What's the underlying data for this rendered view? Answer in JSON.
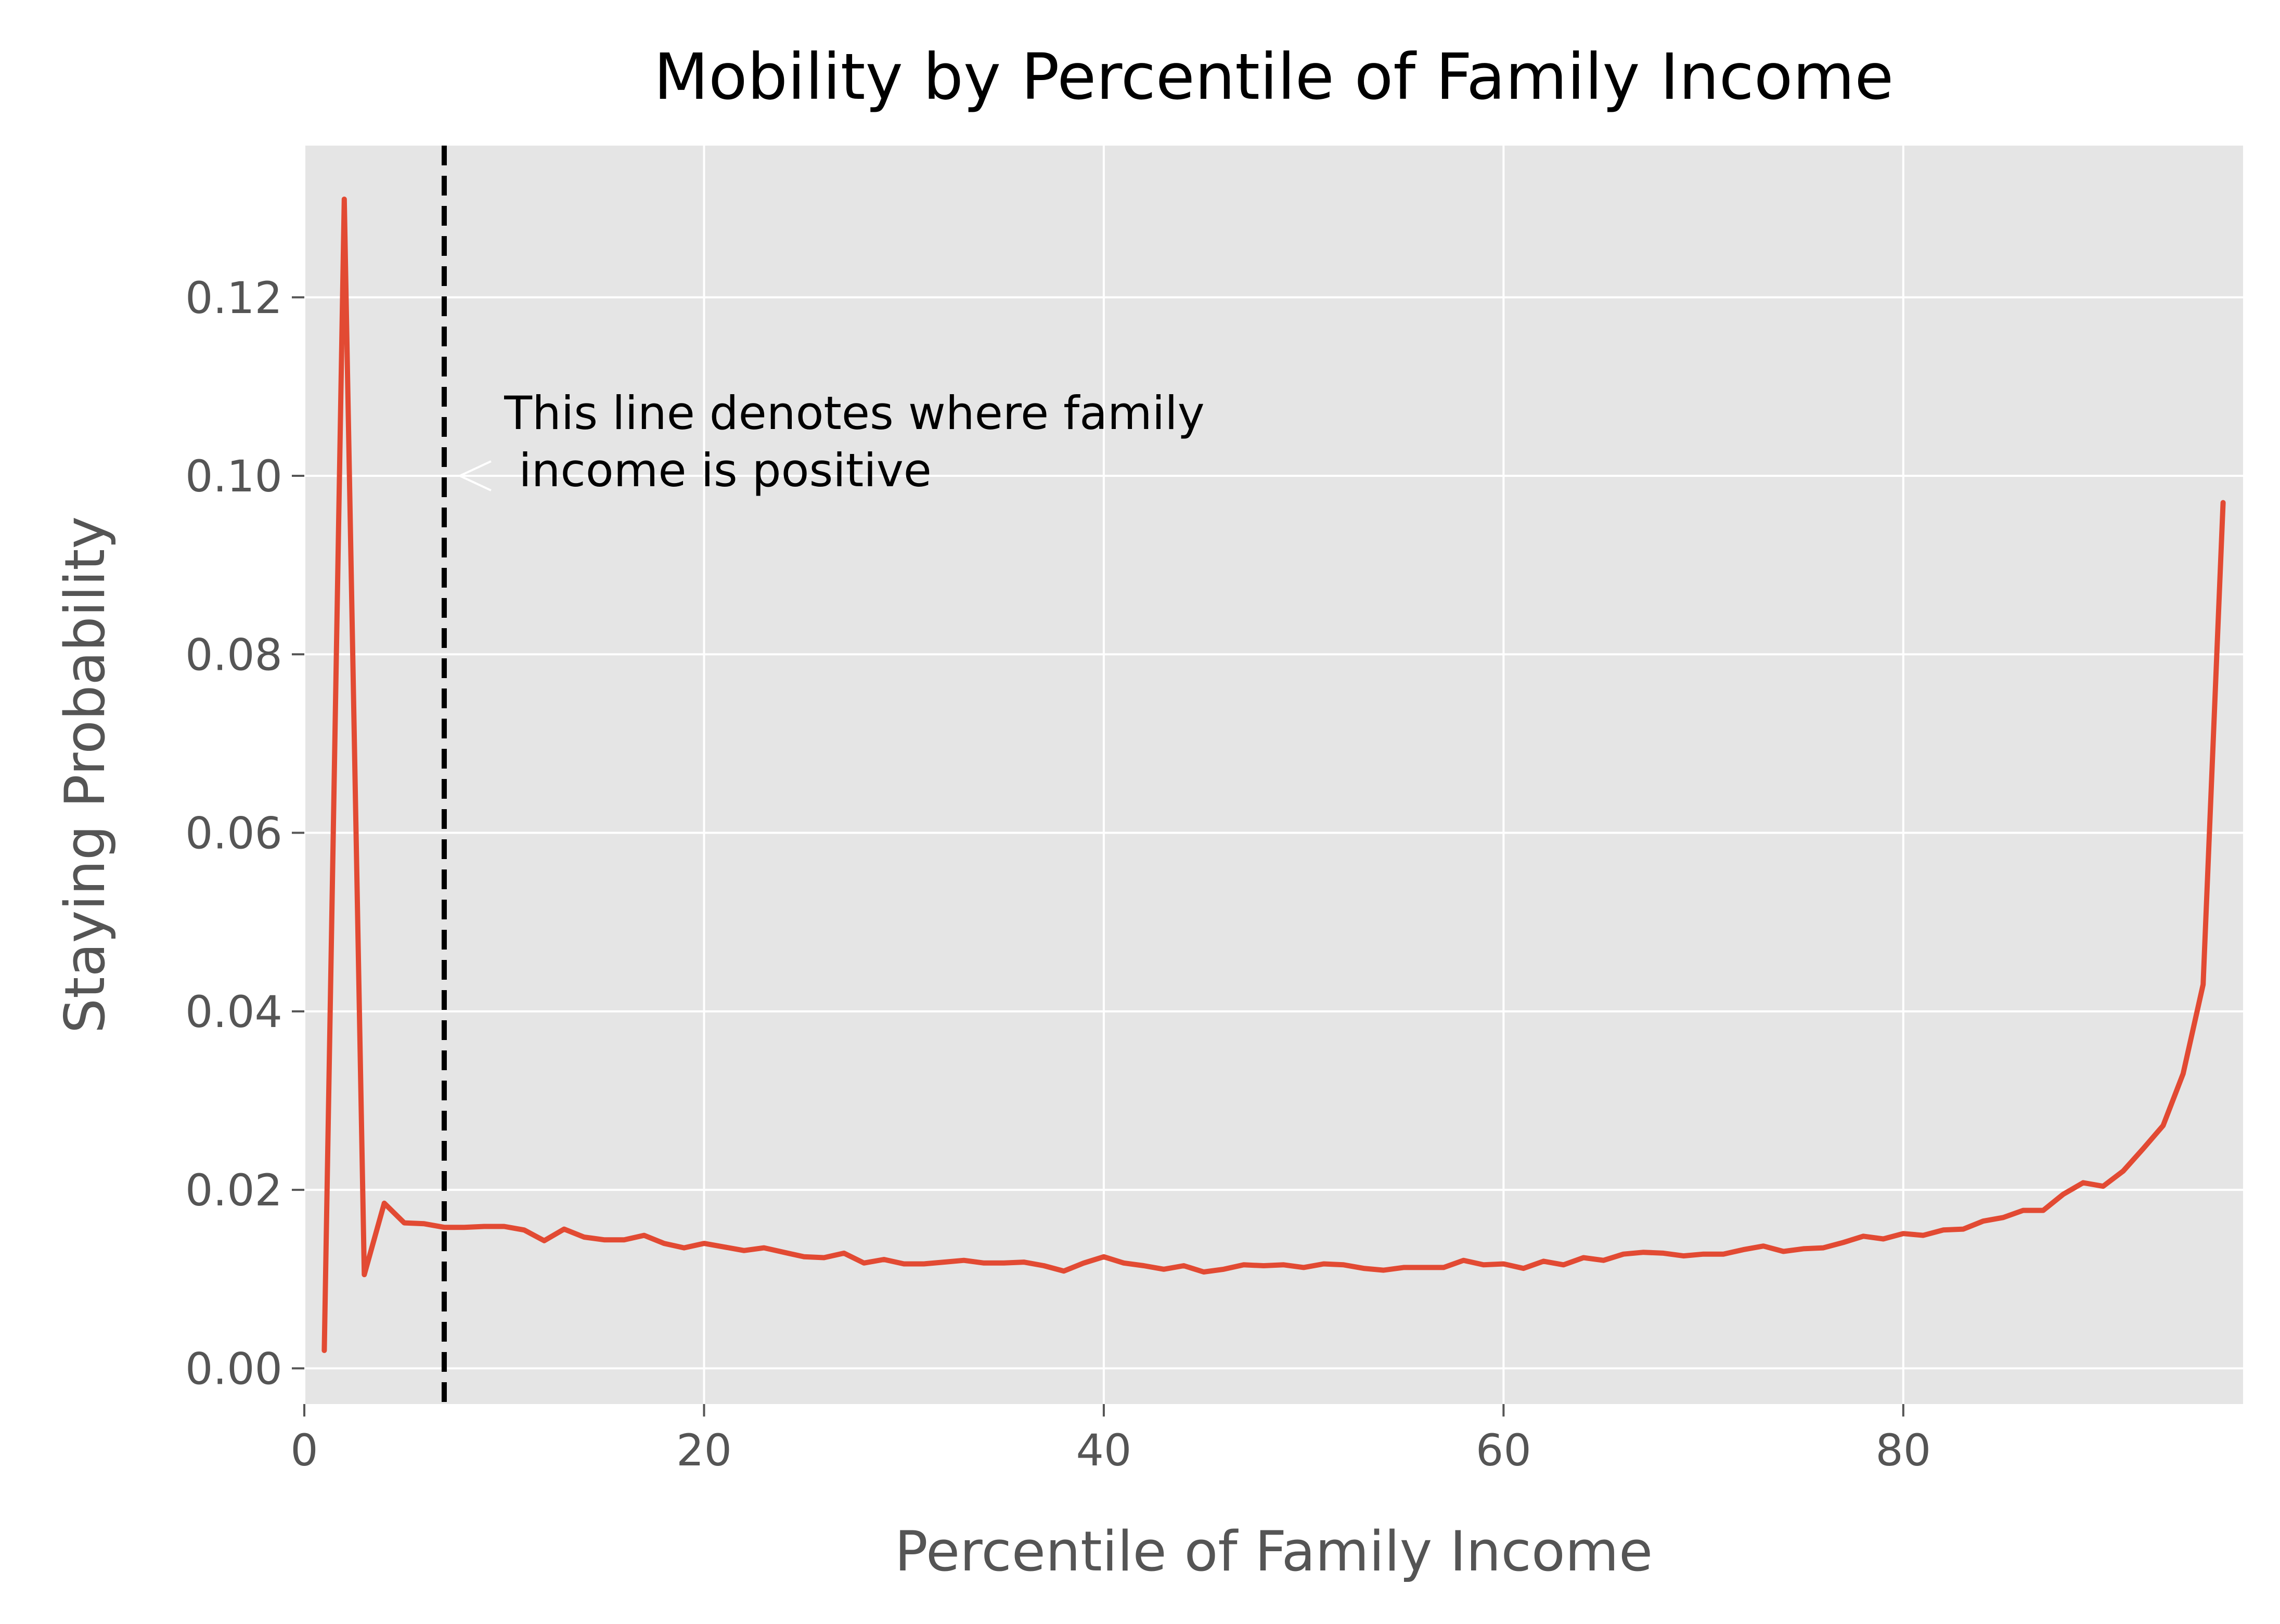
{
  "chart_data": {
    "type": "line",
    "title": "Mobility by Percentile of Family Income",
    "xlabel": "Percentile of Family Income",
    "ylabel": "Staying Probability",
    "xlim": [
      0,
      97
    ],
    "ylim": [
      -0.004,
      0.137
    ],
    "xticks": [
      0,
      20,
      40,
      60,
      80
    ],
    "xtick_labels": [
      "0",
      "20",
      "40",
      "60",
      "80"
    ],
    "yticks": [
      0.0,
      0.02,
      0.04,
      0.06,
      0.08,
      0.1,
      0.12
    ],
    "ytick_labels": [
      "0.00",
      "0.02",
      "0.04",
      "0.06",
      "0.08",
      "0.10",
      "0.12"
    ],
    "grid": true,
    "background": "#e5e5e5",
    "line_color": "#e24a33",
    "vline": {
      "x": 7,
      "style": "dashed",
      "color": "#000000"
    },
    "annotation": {
      "lines": [
        "This line denotes where family",
        " income is positive"
      ],
      "arrow_to": [
        7,
        0.1
      ],
      "text_at": [
        10,
        0.1
      ]
    },
    "series": [
      {
        "x": [
          1,
          2,
          3,
          4,
          5,
          6,
          7,
          8,
          9,
          10,
          11,
          12,
          13,
          14,
          15,
          16,
          17,
          18,
          19,
          20,
          21,
          22,
          23,
          24,
          25,
          26,
          27,
          28,
          29,
          30,
          31,
          32,
          33,
          34,
          35,
          36,
          37,
          38,
          39,
          40,
          41,
          42,
          43,
          44,
          45,
          46,
          47,
          48,
          49,
          50,
          51,
          52,
          53,
          54,
          55,
          56,
          57,
          58,
          59,
          60,
          61,
          62,
          63,
          64,
          65,
          66,
          67,
          68,
          69,
          70,
          71,
          72,
          73,
          74,
          75,
          76,
          77,
          78,
          79,
          80,
          81,
          82,
          83,
          84,
          85,
          86,
          87,
          88,
          89,
          90,
          91,
          92,
          93,
          94,
          95,
          96
        ],
        "values": [
          0.002,
          0.131,
          0.0105,
          0.0185,
          0.0163,
          0.0162,
          0.0158,
          0.0158,
          0.0159,
          0.0159,
          0.0155,
          0.0143,
          0.0156,
          0.0147,
          0.0144,
          0.0144,
          0.0149,
          0.014,
          0.0135,
          0.014,
          0.0136,
          0.0132,
          0.0135,
          0.013,
          0.0125,
          0.0124,
          0.0129,
          0.0118,
          0.0122,
          0.0117,
          0.0117,
          0.0119,
          0.0121,
          0.0118,
          0.0118,
          0.0119,
          0.0115,
          0.0109,
          0.0118,
          0.0125,
          0.0118,
          0.0115,
          0.0111,
          0.0115,
          0.0108,
          0.0111,
          0.0116,
          0.0115,
          0.0116,
          0.0113,
          0.0117,
          0.0116,
          0.0112,
          0.011,
          0.0113,
          0.0113,
          0.0113,
          0.0121,
          0.0116,
          0.0117,
          0.0112,
          0.012,
          0.0116,
          0.0124,
          0.0121,
          0.0128,
          0.013,
          0.0129,
          0.0126,
          0.0128,
          0.0128,
          0.0133,
          0.0137,
          0.0131,
          0.0134,
          0.0135,
          0.0141,
          0.0148,
          0.0145,
          0.0151,
          0.0149,
          0.0155,
          0.0156,
          0.0165,
          0.0169,
          0.0177,
          0.0177,
          0.0195,
          0.0208,
          0.0204,
          0.0221,
          0.0246,
          0.0272,
          0.033,
          0.043,
          0.097
        ]
      }
    ]
  }
}
